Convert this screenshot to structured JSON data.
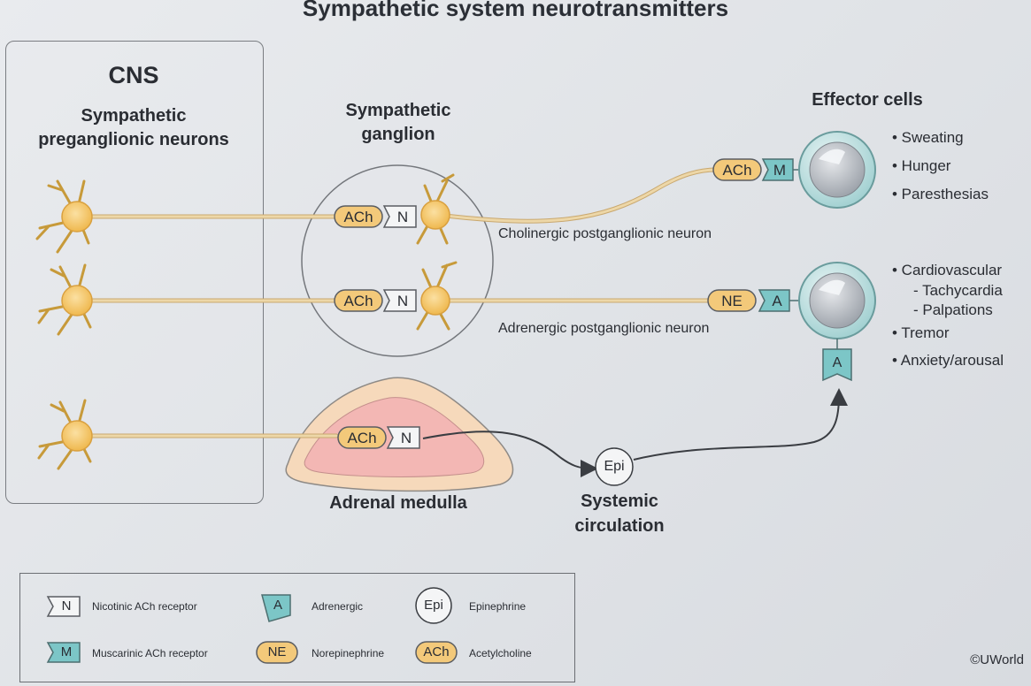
{
  "title": "Sympathetic system neurotransmitters",
  "cns": {
    "heading": "CNS",
    "subheading_line1": "Sympathetic",
    "subheading_line2": "preganglionic neurons"
  },
  "ganglion": {
    "line1": "Sympathetic",
    "line2": "ganglion"
  },
  "effector": {
    "heading": "Effector cells"
  },
  "labels": {
    "ach": "ACh",
    "n": "N",
    "m": "M",
    "ne": "NE",
    "a": "A",
    "epi": "Epi",
    "cholinergic": "Cholinergic postganglionic neuron",
    "adrenergic": "Adrenergic postganglionic neuron",
    "adrenal": "Adrenal medulla",
    "systemic_line1": "Systemic",
    "systemic_line2": "circulation"
  },
  "effects_top": [
    "• Sweating",
    "• Hunger",
    "• Paresthesias"
  ],
  "effects_bottom": [
    "• Cardiovascular",
    "- Tachycardia",
    "- Palpations",
    "• Tremor",
    "• Anxiety/arousal"
  ],
  "legend": {
    "n_text": "Nicotinic ACh receptor",
    "m_text": "Muscarinic ACh receptor",
    "a_text": "Adrenergic",
    "ne_text": "Norepinephrine",
    "epi_text": "Epinephrine",
    "ach_text": "Acetylcholine"
  },
  "copyright": "©UWorld",
  "colors": {
    "neuron": "#f2c25d",
    "axon": "#e6c58e",
    "receptor": "#7cc6c7",
    "adrenal_outer": "#f5d8b8",
    "adrenal_inner": "#f4b6b3",
    "cell": "#bfe3e3"
  }
}
